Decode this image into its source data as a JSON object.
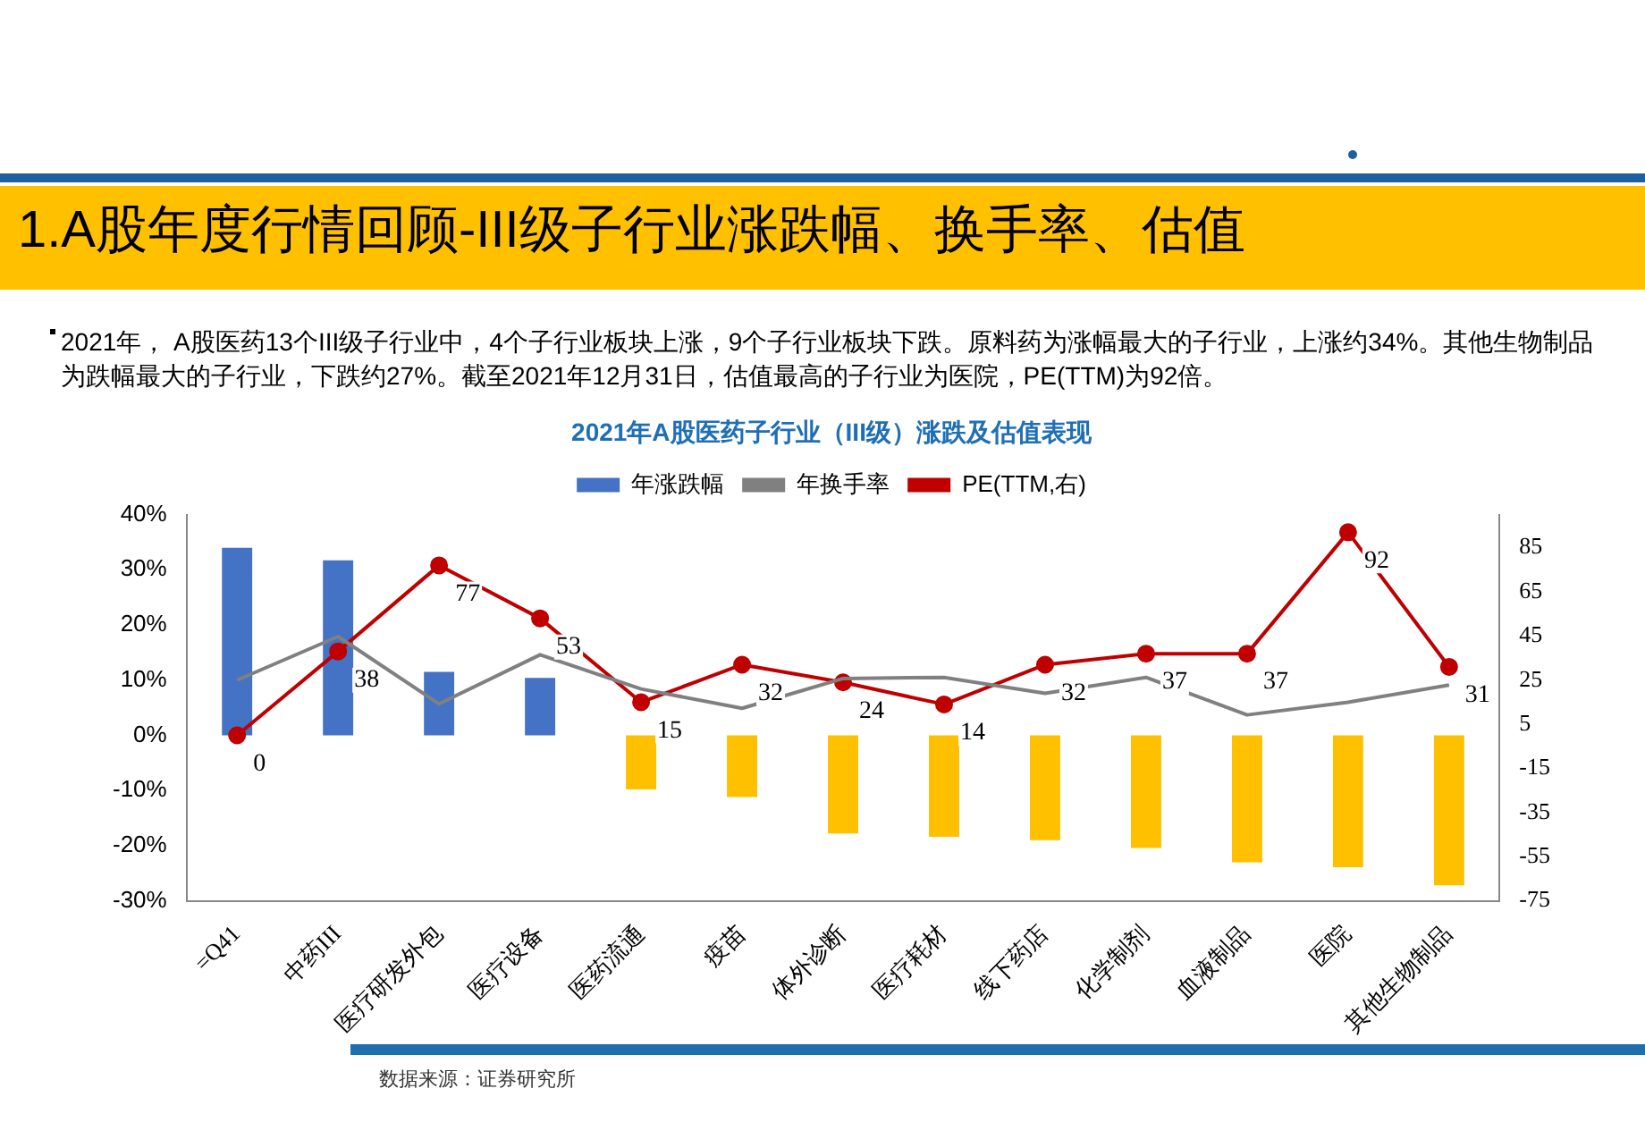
{
  "chart_data": {
    "type": "bar",
    "title": "1.A股年度行情回顾-III级子行业涨跌幅、换手率、估值",
    "subtitle": "2021年A股医药子行业（III级）涨跌及估值表现",
    "annotations": [
      "2021年， A股医药13个III级子行业中，4个子行业板块上涨，9个子行业板块下跌。原料药为涨幅最大的子行业，上涨约34%。其他生物制品为跌幅最大的子行业，下跌约27%。截至2021年12月31日，估值最高的子行业为医院，PE(TTM)为92倍。",
      "数据来源：证券研究所"
    ],
    "categories": [
      "=Q41",
      "中药III",
      "医疗研发外包",
      "医疗设备",
      "医药流通",
      "疫苗",
      "体外诊断",
      "医疗耗材",
      "线下药店",
      "化学制剂",
      "血液制品",
      "医院",
      "其他生物制品"
    ],
    "series": [
      {
        "name": "年涨跌幅",
        "color": "#4472c4",
        "colors": [
          "#4472c4",
          "#4472c4",
          "#4472c4",
          "#4472c4",
          "#ffc000",
          "#ffc000",
          "#ffc000",
          "#ffc000",
          "#ffc000",
          "#ffc000",
          "#ffc000",
          "#ffc000",
          "#ffc000"
        ],
        "values": [
          34.0,
          31.7,
          11.5,
          10.4,
          -9.8,
          -11.2,
          -17.8,
          -18.4,
          -19.0,
          -20.4,
          -23.0,
          -23.9,
          -27.2
        ]
      },
      {
        "name": "年换手率",
        "type": "line",
        "color": "#808080",
        "marker": "none",
        "values": [
          10.0,
          17.9,
          5.7,
          14.6,
          8.4,
          4.9,
          10.3,
          10.5,
          7.6,
          10.5,
          3.7,
          6.0,
          9.1
        ]
      },
      {
        "name": "PE(TTM,右)",
        "type": "line",
        "axis": "y2",
        "color": "#c00000",
        "marker": "circle",
        "values": [
          0,
          38,
          77,
          53,
          15,
          32,
          24,
          14,
          32,
          37,
          37,
          92,
          31
        ],
        "value_labels": [
          "0",
          "38",
          "77",
          "53",
          "15",
          "32",
          "24",
          "14",
          "32",
          "37",
          "37",
          "92",
          "31"
        ]
      }
    ],
    "ylim": [
      -30,
      40
    ],
    "yticks": [
      {
        "value": -30,
        "label": "-30%"
      },
      {
        "value": -20,
        "label": "-20%"
      },
      {
        "value": -10,
        "label": "-10%"
      },
      {
        "value": 0,
        "label": "0%"
      },
      {
        "value": 10,
        "label": "10%"
      },
      {
        "value": 20,
        "label": "20%"
      },
      {
        "value": 30,
        "label": "30%"
      },
      {
        "value": 40,
        "label": "40%"
      }
    ],
    "y2lim": [
      -75,
      100
    ],
    "y2ticks": [
      -75,
      -55,
      -35,
      -15,
      5,
      25,
      45,
      65,
      85
    ],
    "grid": false,
    "legend": "top"
  }
}
